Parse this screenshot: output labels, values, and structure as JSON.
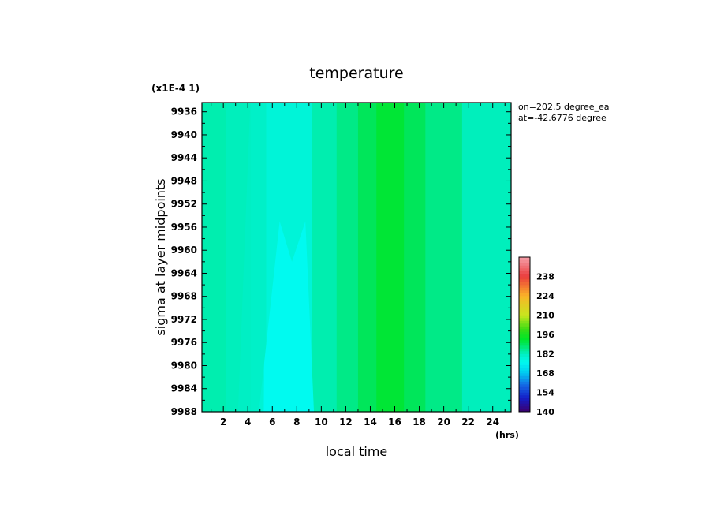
{
  "chart_data": {
    "type": "heatmap",
    "title": "temperature",
    "scale_note": "(x1E-4 1)",
    "xlabel": "local time",
    "xunit": "(hrs)",
    "ylabel": "sigma at layer midpoints",
    "info": [
      "lon=202.5 degree_ea",
      "lat=-42.6776 degree"
    ],
    "x_ticks": [
      2,
      4,
      6,
      8,
      10,
      12,
      14,
      16,
      18,
      20,
      22,
      24
    ],
    "y_ticks": [
      9936,
      9940,
      9944,
      9948,
      9952,
      9956,
      9960,
      9964,
      9968,
      9972,
      9976,
      9980,
      9984,
      9988
    ],
    "xlim": [
      0.25,
      25.5
    ],
    "ylim": [
      9934.4,
      9988
    ],
    "colorbar": {
      "ticks": [
        140,
        154,
        168,
        182,
        196,
        210,
        224,
        238
      ],
      "range": [
        140,
        252
      ]
    },
    "columns": [
      {
        "x_start": 0.25,
        "x_end": 2.25,
        "value": 183
      },
      {
        "x_start": 2.25,
        "x_end": 4.25,
        "value": 182
      },
      {
        "x_start": 4.25,
        "x_end": 5.5,
        "value": 181
      },
      {
        "x_start": 5.5,
        "x_end": 9.25,
        "value": 179
      },
      {
        "x_start": 9.25,
        "x_end": 11.25,
        "value": 183
      },
      {
        "x_start": 11.25,
        "x_end": 13.0,
        "value": 186
      },
      {
        "x_start": 13.0,
        "x_end": 14.5,
        "value": 189
      },
      {
        "x_start": 14.5,
        "x_end": 16.75,
        "value": 192
      },
      {
        "x_start": 16.75,
        "x_end": 18.5,
        "value": 189
      },
      {
        "x_start": 18.5,
        "x_end": 21.5,
        "value": 186
      },
      {
        "x_start": 21.5,
        "x_end": 25.5,
        "value": 182
      }
    ]
  }
}
